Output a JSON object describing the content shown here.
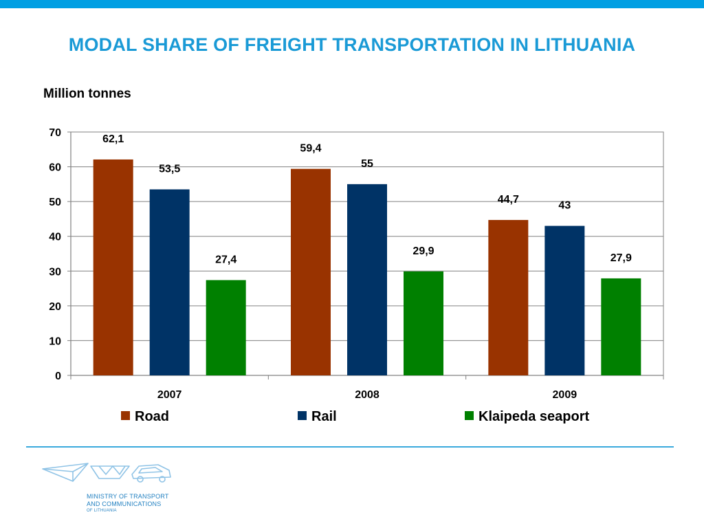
{
  "title": "MODAL SHARE OF FREIGHT TRANSPORTATION IN LITHUANIA",
  "unit_label": "Million tonnes",
  "logo": {
    "line1": "MINISTRY OF TRANSPORT",
    "line2": "AND COMMUNICATIONS",
    "line3": "OF LITHUANIA"
  },
  "colors": {
    "accent": "#009fe3",
    "title": "#1a9ad6",
    "road": "#993300",
    "rail": "#003366",
    "seaport": "#008000"
  },
  "chart_data": {
    "type": "bar",
    "categories": [
      "2007",
      "2008",
      "2009"
    ],
    "series": [
      {
        "name": "Road",
        "values": [
          62.1,
          59.4,
          44.7
        ],
        "labels": [
          "62,1",
          "59,4",
          "44,7"
        ],
        "color": "#993300"
      },
      {
        "name": "Rail",
        "values": [
          53.5,
          55,
          43
        ],
        "labels": [
          "53,5",
          "55",
          "43"
        ],
        "color": "#003366"
      },
      {
        "name": "Klaipeda seaport",
        "values": [
          27.4,
          29.9,
          27.9
        ],
        "labels": [
          "27,4",
          "29,9",
          "27,9"
        ],
        "color": "#008000"
      }
    ],
    "ylim": [
      0,
      70
    ],
    "yticks": [
      0,
      10,
      20,
      30,
      40,
      50,
      60,
      70
    ],
    "grid": true,
    "legend_position": "bottom"
  }
}
